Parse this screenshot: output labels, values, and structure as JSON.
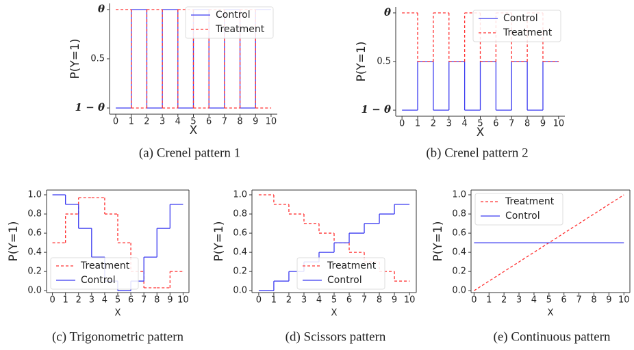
{
  "chart_data": [
    {
      "type": "line",
      "drawstyle": "steps-post",
      "caption": "(a) Crenel pattern 1",
      "xlabel": "X",
      "ylabel": "P(Y=1)",
      "x": [
        0,
        1,
        2,
        3,
        4,
        5,
        6,
        7,
        8,
        9,
        10
      ],
      "xlim": [
        -0.4,
        10.4
      ],
      "xticks": [
        0,
        1,
        2,
        3,
        4,
        5,
        6,
        7,
        8,
        9,
        10
      ],
      "ylim": [
        0.05,
        0.95
      ],
      "yticks": [
        {
          "value": 0.1,
          "label": "1 − θ"
        },
        0.5,
        {
          "value": 0.9,
          "label": "θ"
        }
      ],
      "spines": [
        "left",
        "bottom"
      ],
      "legend": "upper right",
      "series": [
        {
          "name": "Control",
          "color": "#3a3af0",
          "linestyle": "solid",
          "values": [
            0.1,
            0.9,
            0.1,
            0.9,
            0.1,
            0.9,
            0.1,
            0.9,
            0.1,
            0.9,
            0.9
          ]
        },
        {
          "name": "Treatment",
          "color": "#ff3030",
          "linestyle": "dashed",
          "values": [
            0.9,
            0.1,
            0.9,
            0.1,
            0.9,
            0.1,
            0.9,
            0.1,
            0.9,
            0.1,
            0.1
          ]
        }
      ]
    },
    {
      "type": "line",
      "drawstyle": "steps-post",
      "caption": "(b) Crenel pattern 2",
      "xlabel": "X",
      "ylabel": "P(Y=1)",
      "x": [
        0,
        1,
        2,
        3,
        4,
        5,
        6,
        7,
        8,
        9,
        10
      ],
      "xlim": [
        -0.4,
        10.4
      ],
      "xticks": [
        0,
        1,
        2,
        3,
        4,
        5,
        6,
        7,
        8,
        9,
        10
      ],
      "ylim": [
        0.05,
        0.95
      ],
      "yticks": [
        {
          "value": 0.1,
          "label": "1 − θ"
        },
        0.5,
        {
          "value": 0.9,
          "label": "θ"
        }
      ],
      "spines": [
        "left",
        "bottom"
      ],
      "legend": "upper right",
      "series": [
        {
          "name": "Control",
          "color": "#3a3af0",
          "linestyle": "solid",
          "values": [
            0.1,
            0.5,
            0.1,
            0.5,
            0.1,
            0.5,
            0.1,
            0.5,
            0.1,
            0.5,
            0.5
          ]
        },
        {
          "name": "Treatment",
          "color": "#ff3030",
          "linestyle": "dashed",
          "values": [
            0.9,
            0.5,
            0.9,
            0.5,
            0.9,
            0.5,
            0.9,
            0.5,
            0.9,
            0.5,
            0.5
          ]
        }
      ]
    },
    {
      "type": "line",
      "drawstyle": "steps-post",
      "caption": "(c) Trigonometric pattern",
      "xlabel": "X",
      "ylabel": "P(Y=1)",
      "x": [
        0,
        1,
        2,
        3,
        4,
        5,
        6,
        7,
        8,
        9,
        10
      ],
      "xlim": [
        -0.45,
        10.45
      ],
      "xticks": [
        0,
        1,
        2,
        3,
        4,
        5,
        6,
        7,
        8,
        9,
        10
      ],
      "ylim": [
        -0.02,
        1.05
      ],
      "yticks": [
        {
          "value": 0,
          "label": "0.0"
        },
        0.2,
        0.4,
        0.6,
        0.8,
        {
          "value": 1,
          "label": "1.0"
        }
      ],
      "spines": [
        "left",
        "bottom",
        "right",
        "top"
      ],
      "legend": "lower left",
      "series": [
        {
          "name": "Treatment",
          "color": "#ff3030",
          "linestyle": "dashed",
          "values": [
            0.5,
            0.8,
            0.97,
            0.97,
            0.8,
            0.5,
            0.2,
            0.03,
            0.03,
            0.2,
            0.2
          ]
        },
        {
          "name": "Control",
          "color": "#3a3af0",
          "linestyle": "solid",
          "values": [
            1.0,
            0.9,
            0.65,
            0.35,
            0.1,
            0.0,
            0.1,
            0.35,
            0.65,
            0.9,
            0.9
          ]
        }
      ]
    },
    {
      "type": "line",
      "drawstyle": "steps-post",
      "caption": "(d) Scissors pattern",
      "xlabel": "X",
      "ylabel": "P(Y=1)",
      "x": [
        0,
        1,
        2,
        3,
        4,
        5,
        6,
        7,
        8,
        9,
        10
      ],
      "xlim": [
        -0.45,
        10.45
      ],
      "xticks": [
        0,
        1,
        2,
        3,
        4,
        5,
        6,
        7,
        8,
        9,
        10
      ],
      "ylim": [
        -0.02,
        1.05
      ],
      "yticks": [
        {
          "value": 0,
          "label": "0.0"
        },
        0.2,
        0.4,
        0.6,
        0.8,
        {
          "value": 1,
          "label": "1.0"
        }
      ],
      "spines": [
        "left",
        "bottom",
        "right",
        "top"
      ],
      "legend": "lower center",
      "series": [
        {
          "name": "Treatment",
          "color": "#ff3030",
          "linestyle": "dashed",
          "values": [
            1.0,
            0.9,
            0.8,
            0.7,
            0.6,
            0.5,
            0.4,
            0.3,
            0.2,
            0.1,
            0.1
          ]
        },
        {
          "name": "Control",
          "color": "#3a3af0",
          "linestyle": "solid",
          "values": [
            0.0,
            0.1,
            0.2,
            0.3,
            0.4,
            0.5,
            0.6,
            0.7,
            0.8,
            0.9,
            0.9
          ]
        }
      ]
    },
    {
      "type": "line",
      "drawstyle": "default",
      "caption": "(e) Continuous pattern",
      "xlabel": "X",
      "ylabel": "P(Y=1)",
      "x": [
        0,
        10
      ],
      "xlim": [
        -0.2,
        10.4
      ],
      "xticks": [
        0,
        1,
        2,
        3,
        4,
        5,
        6,
        7,
        8,
        9,
        10
      ],
      "ylim": [
        -0.02,
        1.05
      ],
      "yticks": [
        {
          "value": 0,
          "label": "0.0"
        },
        0.2,
        0.4,
        0.6,
        0.8,
        {
          "value": 1,
          "label": "1.0"
        }
      ],
      "spines": [
        "left",
        "bottom",
        "right",
        "top"
      ],
      "legend": "upper left",
      "series": [
        {
          "name": "Treatment",
          "color": "#ff3030",
          "linestyle": "dashed",
          "values": [
            0,
            1
          ]
        },
        {
          "name": "Control",
          "color": "#3a3af0",
          "linestyle": "solid",
          "values": [
            0.5,
            0.5
          ]
        }
      ]
    }
  ]
}
